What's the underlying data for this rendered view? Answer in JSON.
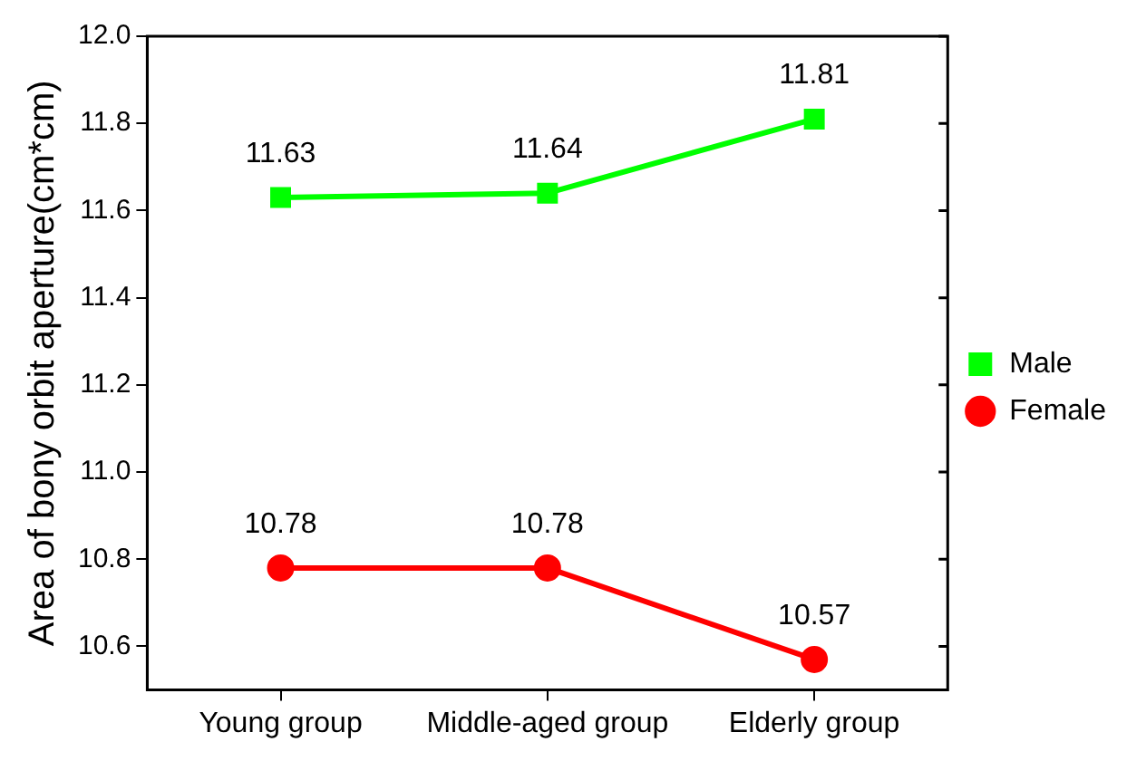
{
  "chart_data": {
    "type": "line",
    "ylabel": "Area of bony orbit aperture(cm*cm)",
    "categories": [
      "Young group",
      "Middle-aged group",
      "Elderly group"
    ],
    "series": [
      {
        "name": "Male",
        "color": "#00ff00",
        "marker": "square",
        "values": [
          11.63,
          11.64,
          11.81
        ]
      },
      {
        "name": "Female",
        "color": "#ff0000",
        "marker": "circle",
        "values": [
          10.78,
          10.78,
          10.57
        ]
      }
    ],
    "ylim": [
      10.5,
      12.0
    ],
    "yticks": [
      {
        "value": 10.6,
        "label": "10.6"
      },
      {
        "value": 10.8,
        "label": "10.8"
      },
      {
        "value": 11.0,
        "label": "11.0"
      },
      {
        "value": 11.2,
        "label": "11.2"
      },
      {
        "value": 11.4,
        "label": "11.4"
      },
      {
        "value": 11.6,
        "label": "11.6"
      },
      {
        "value": 11.8,
        "label": "11.8"
      },
      {
        "value": 12.0,
        "label": "12.0"
      }
    ],
    "data_labels": true,
    "grid": false,
    "legend": "right",
    "line_style": "solid"
  }
}
